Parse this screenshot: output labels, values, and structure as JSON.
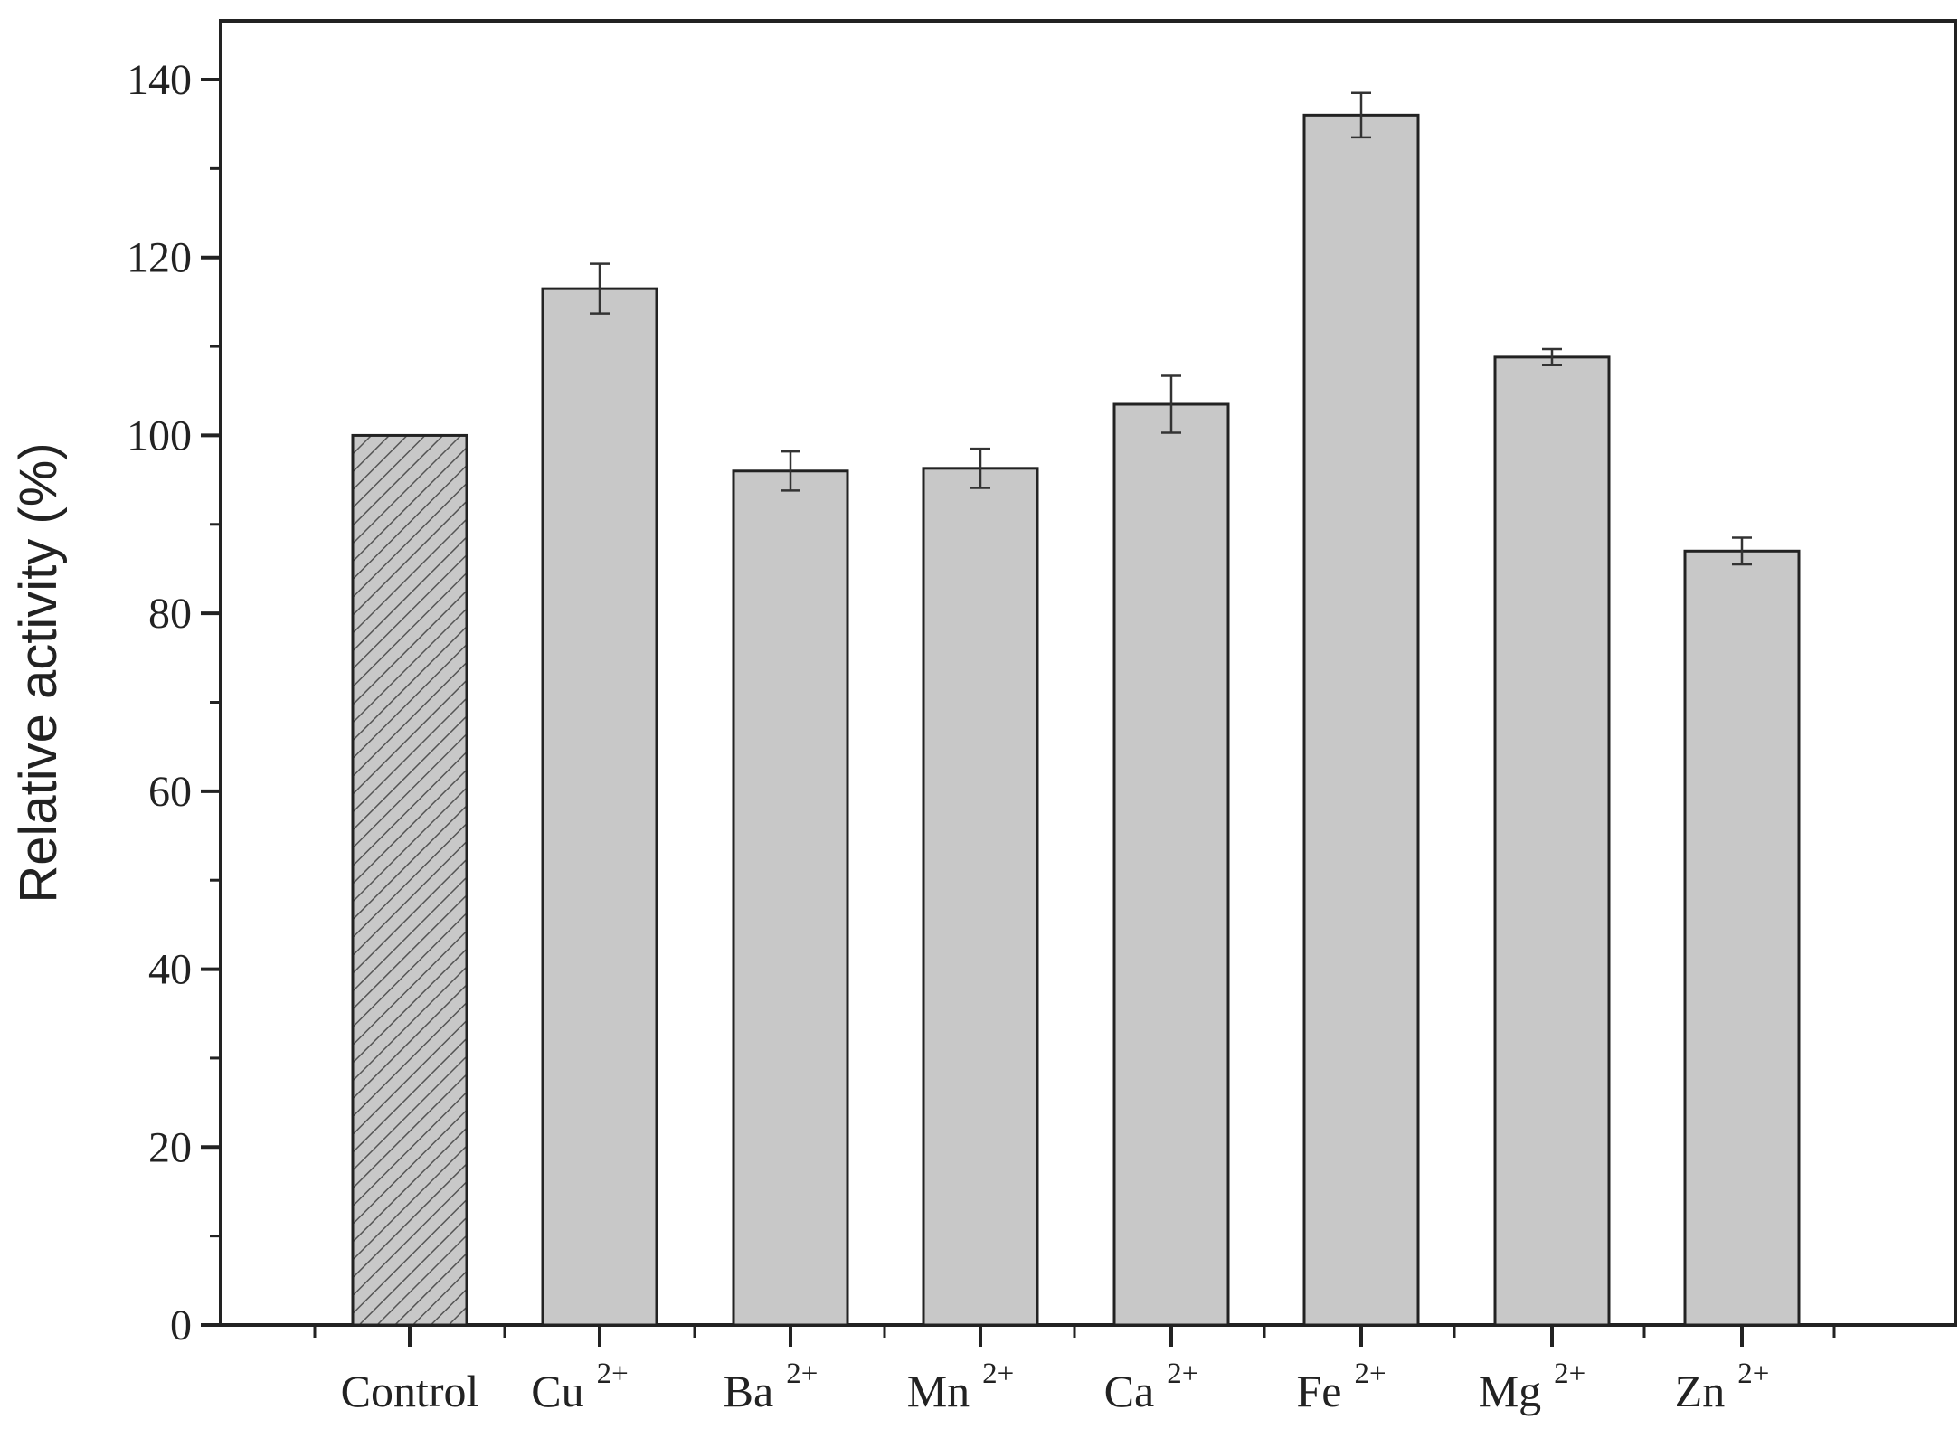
{
  "chart_data": {
    "type": "bar",
    "title": "",
    "xlabel": "",
    "ylabel": "Relative activity (%)",
    "ylim": [
      0,
      147
    ],
    "yticks": [
      0,
      20,
      40,
      60,
      80,
      100,
      120,
      140
    ],
    "categories": [
      {
        "base": "Control",
        "sup": ""
      },
      {
        "base": "Cu",
        "sup": "2+"
      },
      {
        "base": "Ba",
        "sup": "2+"
      },
      {
        "base": "Mn",
        "sup": "2+"
      },
      {
        "base": "Ca",
        "sup": "2+"
      },
      {
        "base": "Fe",
        "sup": "2+"
      },
      {
        "base": "Mg",
        "sup": "2+"
      },
      {
        "base": "Zn",
        "sup": "2+"
      }
    ],
    "values": [
      100,
      116.5,
      96,
      96.3,
      103.5,
      136,
      108.8,
      87
    ],
    "errors": [
      0,
      2.8,
      2.2,
      2.2,
      3.2,
      2.5,
      0.9,
      1.5
    ],
    "bar_color": "#c8c8c8",
    "control_pattern": "diagonal-hatch",
    "grid": false,
    "legend": "none"
  }
}
